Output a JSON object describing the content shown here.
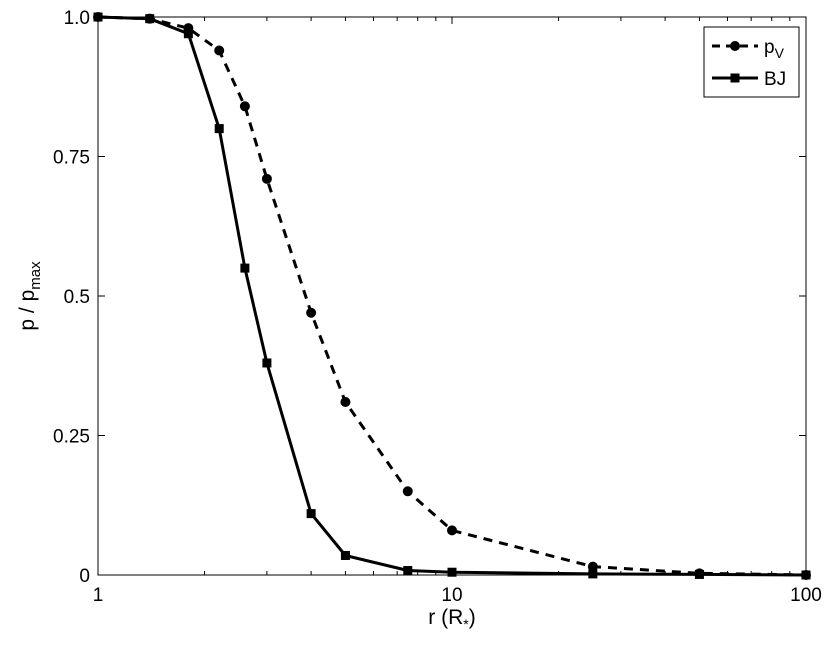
{
  "chart_data": {
    "type": "line",
    "title": "",
    "xlabel": {
      "base": "r (R",
      "sub": "*",
      "close": ")"
    },
    "ylabel": {
      "base": "p / p",
      "sub": "max"
    },
    "x_scale": "log",
    "xlim": [
      1,
      100
    ],
    "ylim": [
      0,
      1
    ],
    "grid": false,
    "legend_position": "top-right",
    "x_ticks": [
      {
        "value": 1,
        "label": "1"
      },
      {
        "value": 10,
        "label": "10"
      },
      {
        "value": 100,
        "label": "100"
      }
    ],
    "y_ticks": [
      {
        "value": 0,
        "label": "0"
      },
      {
        "value": 0.25,
        "label": "0.25"
      },
      {
        "value": 0.5,
        "label": "0.5"
      },
      {
        "value": 0.75,
        "label": "0.75"
      },
      {
        "value": 1,
        "label": "1.0"
      }
    ],
    "series": [
      {
        "name": "p",
        "name_sub": "V",
        "style": "dashed",
        "marker": "circle",
        "color": "#000000",
        "x": [
          1,
          1.4,
          1.8,
          2.2,
          2.6,
          3.0,
          4.0,
          5.0,
          7.5,
          10,
          25,
          50,
          100
        ],
        "y": [
          1.0,
          0.997,
          0.98,
          0.94,
          0.84,
          0.71,
          0.47,
          0.31,
          0.15,
          0.08,
          0.015,
          0.003,
          0.0
        ]
      },
      {
        "name": "BJ",
        "name_sub": "",
        "style": "solid",
        "marker": "square",
        "color": "#000000",
        "x": [
          1,
          1.4,
          1.8,
          2.2,
          2.6,
          3.0,
          4.0,
          5.0,
          7.5,
          10,
          25,
          50,
          100
        ],
        "y": [
          1.0,
          0.997,
          0.97,
          0.8,
          0.55,
          0.38,
          0.11,
          0.035,
          0.008,
          0.005,
          0.002,
          0.001,
          0.0
        ]
      }
    ]
  }
}
